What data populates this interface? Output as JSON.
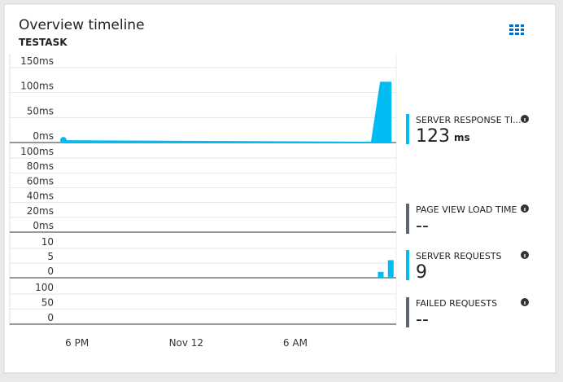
{
  "header": {
    "title": "Overview timeline",
    "subtitle": "TESTASK"
  },
  "chart_data": [
    {
      "type": "area",
      "color": "#00bcf2",
      "xlim": [
        -3.7,
        17.55
      ],
      "ylim": [
        0,
        150
      ],
      "yticks": [
        {
          "value": 0,
          "label": "0ms"
        },
        {
          "value": 50,
          "label": "50ms"
        },
        {
          "value": 100,
          "label": "100ms"
        },
        {
          "value": 150,
          "label": "150ms"
        }
      ],
      "x": [
        -0.75,
        16.2,
        16.7,
        17.25
      ],
      "values": [
        3,
        0,
        120,
        120
      ],
      "metric": {
        "label": "SERVER RESPONSE TI...",
        "value": 123,
        "unit": "ms",
        "color": "#00bcf2"
      }
    },
    {
      "type": "line",
      "color": "#00bcf2",
      "xlim": [
        -3.7,
        17.55
      ],
      "ylim": [
        0,
        100
      ],
      "yticks": [
        {
          "value": 0,
          "label": "0ms"
        },
        {
          "value": 20,
          "label": "20ms"
        },
        {
          "value": 40,
          "label": "40ms"
        },
        {
          "value": 60,
          "label": "60ms"
        },
        {
          "value": 80,
          "label": "80ms"
        },
        {
          "value": 100,
          "label": "100ms"
        }
      ],
      "x": [],
      "values": [],
      "metric": {
        "label": "PAGE VIEW LOAD TIME",
        "value": "--",
        "color": "#5d6670"
      }
    },
    {
      "type": "bar",
      "color": "#00bcf2",
      "xlim": [
        -3.7,
        17.55
      ],
      "ylim": [
        0,
        10
      ],
      "yticks": [
        0,
        5,
        10
      ],
      "x": [
        16.7,
        17.25
      ],
      "values": [
        2,
        6
      ],
      "metric": {
        "label": "SERVER REQUESTS",
        "value": 9,
        "color": "#00bcf2"
      }
    },
    {
      "type": "bar",
      "color": "#00bcf2",
      "xlim": [
        -3.7,
        17.55
      ],
      "ylim": [
        0,
        100
      ],
      "yticks": [
        0,
        50,
        100
      ],
      "x": [],
      "values": [],
      "xticks": [
        {
          "value": 0,
          "label": "6 PM"
        },
        {
          "value": 6,
          "label": "Nov 12"
        },
        {
          "value": 12,
          "label": "6 AM"
        }
      ],
      "metric": {
        "label": "FAILED REQUESTS",
        "value": "--",
        "color": "#5d6670"
      }
    }
  ]
}
